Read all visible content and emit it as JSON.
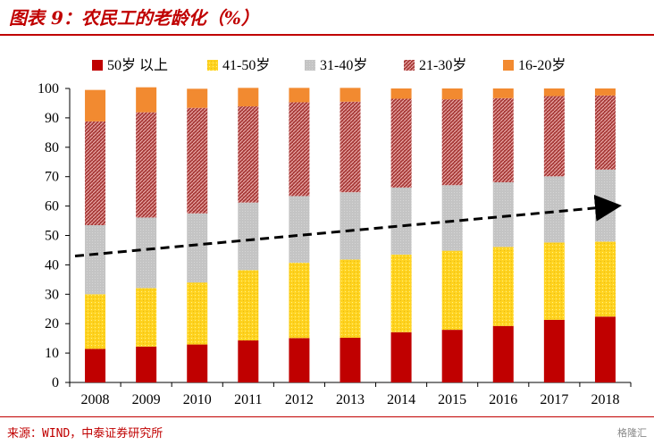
{
  "title": "图表 9：农民工的老龄化（%）",
  "source": "来源：WIND，中泰证券研究所",
  "watermark": "格隆汇",
  "chart_data": {
    "type": "bar",
    "stacked": true,
    "categories": [
      "2008",
      "2009",
      "2010",
      "2011",
      "2012",
      "2013",
      "2014",
      "2015",
      "2016",
      "2017",
      "2018"
    ],
    "series": [
      {
        "name": "50岁 以上",
        "color": "#c00000",
        "pattern": "solid",
        "values": [
          11.4,
          12.2,
          12.9,
          14.3,
          15.1,
          15.2,
          17.1,
          17.9,
          19.2,
          21.3,
          22.4
        ]
      },
      {
        "name": "41-50岁",
        "color": "#ffd320",
        "pattern": "dots",
        "values": [
          18.6,
          19.9,
          21.1,
          23.9,
          25.6,
          26.6,
          26.4,
          26.9,
          26.9,
          26.3,
          25.5
        ]
      },
      {
        "name": "31-40岁",
        "color": "#bfbfbf",
        "pattern": "solid",
        "values": [
          23.5,
          24.0,
          23.5,
          23.0,
          22.7,
          22.9,
          22.8,
          22.3,
          22.0,
          22.5,
          24.5
        ]
      },
      {
        "name": "21-30岁",
        "color": "#c0504d",
        "pattern": "hatch",
        "values": [
          35.3,
          35.8,
          35.9,
          32.7,
          31.9,
          30.8,
          30.2,
          29.2,
          28.6,
          27.3,
          25.2
        ]
      },
      {
        "name": "16-20岁",
        "color": "#f28a30",
        "pattern": "solid",
        "values": [
          10.7,
          8.5,
          6.5,
          6.3,
          4.9,
          4.7,
          3.5,
          3.7,
          3.3,
          2.6,
          2.4
        ]
      }
    ],
    "ylim": [
      0,
      100
    ],
    "yticks": [
      0,
      10,
      20,
      30,
      40,
      50,
      60,
      70,
      80,
      90,
      100
    ],
    "grid": false,
    "legend_position": "top",
    "trend_arrow": {
      "style": "dashed",
      "color": "#000000",
      "from_y": 43,
      "to_y": 60
    }
  }
}
